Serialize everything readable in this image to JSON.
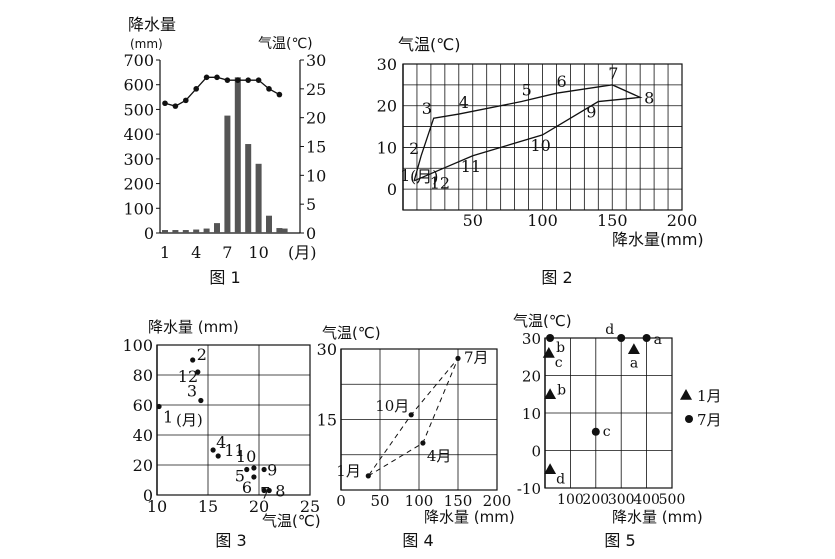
{
  "chart_data": [
    {
      "type": "bar+line",
      "caption": "图 1",
      "ylabel_left": "降水量",
      "ylabel_left_unit": "(mm)",
      "ylabel_right": "气温(℃)",
      "x_unit": "(月)",
      "x_ticks": [
        "1",
        "4",
        "7",
        "10"
      ],
      "y_left_ticks": [
        "0",
        "100",
        "200",
        "300",
        "400",
        "500",
        "600",
        "700"
      ],
      "y_right_ticks": [
        "0",
        "5",
        "10",
        "15",
        "20",
        "25",
        "30"
      ],
      "ylim_left": [
        0,
        700
      ],
      "ylim_right": [
        0,
        30
      ],
      "months": [
        1,
        2,
        3,
        4,
        5,
        6,
        7,
        8,
        9,
        10,
        11,
        12
      ],
      "precipitation": [
        12,
        12,
        12,
        14,
        18,
        40,
        475,
        630,
        360,
        280,
        70,
        20,
        18
      ],
      "precip_months": [
        1,
        2,
        3,
        4,
        5,
        6,
        7,
        8,
        9,
        10,
        11,
        12,
        12.5
      ],
      "temperature": [
        22.5,
        22,
        23,
        25,
        27,
        27,
        26.5,
        26.5,
        26.5,
        26.5,
        25,
        24
      ],
      "grid": false
    },
    {
      "type": "line",
      "caption": "图 2",
      "ylabel": "气温(℃)",
      "xlabel": "降水量(mm)",
      "x_ticks": [
        "50",
        "100",
        "150",
        "200"
      ],
      "y_ticks": [
        "0",
        "10",
        "20",
        "30"
      ],
      "xlim": [
        0,
        200
      ],
      "ylim": [
        -5,
        30
      ],
      "origin_note": "(月)",
      "points": [
        {
          "label": "1",
          "x": 8,
          "y": 2
        },
        {
          "label": "2",
          "x": 13,
          "y": 8
        },
        {
          "label": "3",
          "x": 22,
          "y": 17
        },
        {
          "label": "4",
          "x": 40,
          "y": 18
        },
        {
          "label": "5",
          "x": 85,
          "y": 21
        },
        {
          "label": "6",
          "x": 110,
          "y": 23
        },
        {
          "label": "7",
          "x": 150,
          "y": 25
        },
        {
          "label": "8",
          "x": 170,
          "y": 22
        },
        {
          "label": "9",
          "x": 140,
          "y": 21
        },
        {
          "label": "10",
          "x": 100,
          "y": 13
        },
        {
          "label": "11",
          "x": 50,
          "y": 8
        },
        {
          "label": "12",
          "x": 22,
          "y": 4
        }
      ],
      "grid": true
    },
    {
      "type": "scatter",
      "caption": "图 3",
      "ylabel": "降水量 (mm)",
      "xlabel": "气温(℃)",
      "x_ticks": [
        "10",
        "15",
        "20",
        "25"
      ],
      "y_ticks": [
        "0",
        "20",
        "40",
        "60",
        "80",
        "100"
      ],
      "xlim": [
        10,
        25
      ],
      "ylim": [
        0,
        100
      ],
      "origin_note": "(月)",
      "points": [
        {
          "label": "1",
          "x": 10.2,
          "y": 59
        },
        {
          "label": "2",
          "x": 13.5,
          "y": 90
        },
        {
          "label": "3",
          "x": 14.3,
          "y": 63
        },
        {
          "label": "4",
          "x": 15.5,
          "y": 30
        },
        {
          "label": "5",
          "x": 18.8,
          "y": 17
        },
        {
          "label": "6",
          "x": 19.5,
          "y": 12
        },
        {
          "label": "7",
          "x": 20.5,
          "y": 3
        },
        {
          "label": "8",
          "x": 21,
          "y": 3
        },
        {
          "label": "9",
          "x": 20.5,
          "y": 17
        },
        {
          "label": "10",
          "x": 19.5,
          "y": 18
        },
        {
          "label": "11",
          "x": 16,
          "y": 26
        },
        {
          "label": "12",
          "x": 14,
          "y": 82
        }
      ],
      "grid": true
    },
    {
      "type": "line",
      "caption": "图 4",
      "ylabel": "气温(℃)",
      "xlabel": "降水量 (mm)",
      "x_ticks": [
        "0",
        "50",
        "100",
        "150",
        "200"
      ],
      "y_ticks": [
        "15",
        "30"
      ],
      "xlim": [
        0,
        200
      ],
      "ylim": [
        0,
        30
      ],
      "points": [
        {
          "label": "1月",
          "x": 35,
          "y": 3
        },
        {
          "label": "4月",
          "x": 105,
          "y": 10
        },
        {
          "label": "7月",
          "x": 150,
          "y": 28
        },
        {
          "label": "10月",
          "x": 90,
          "y": 16
        }
      ],
      "grid": true
    },
    {
      "type": "scatter",
      "caption": "图 5",
      "ylabel": "气温(℃)",
      "xlabel": "降水量 (mm)",
      "x_ticks": [
        "100",
        "200",
        "300",
        "400",
        "500"
      ],
      "y_ticks": [
        "-10",
        "0",
        "10",
        "20",
        "30"
      ],
      "xlim": [
        0,
        500
      ],
      "ylim": [
        -10,
        30
      ],
      "legend": [
        {
          "marker": "triangle",
          "label": "1月"
        },
        {
          "marker": "circle",
          "label": "7月"
        }
      ],
      "series": [
        {
          "name": "1月",
          "points": [
            {
              "label": "a",
              "x": 350,
              "y": 27
            },
            {
              "label": "b",
              "x": 20,
              "y": 15
            },
            {
              "label": "c",
              "x": 15,
              "y": 26
            },
            {
              "label": "d",
              "x": 20,
              "y": -5
            }
          ]
        },
        {
          "name": "7月",
          "points": [
            {
              "label": "a",
              "x": 400,
              "y": 30
            },
            {
              "label": "b",
              "x": 20,
              "y": 30
            },
            {
              "label": "c",
              "x": 200,
              "y": 5
            },
            {
              "label": "d",
              "x": 300,
              "y": 30
            }
          ]
        }
      ],
      "grid": true
    }
  ]
}
